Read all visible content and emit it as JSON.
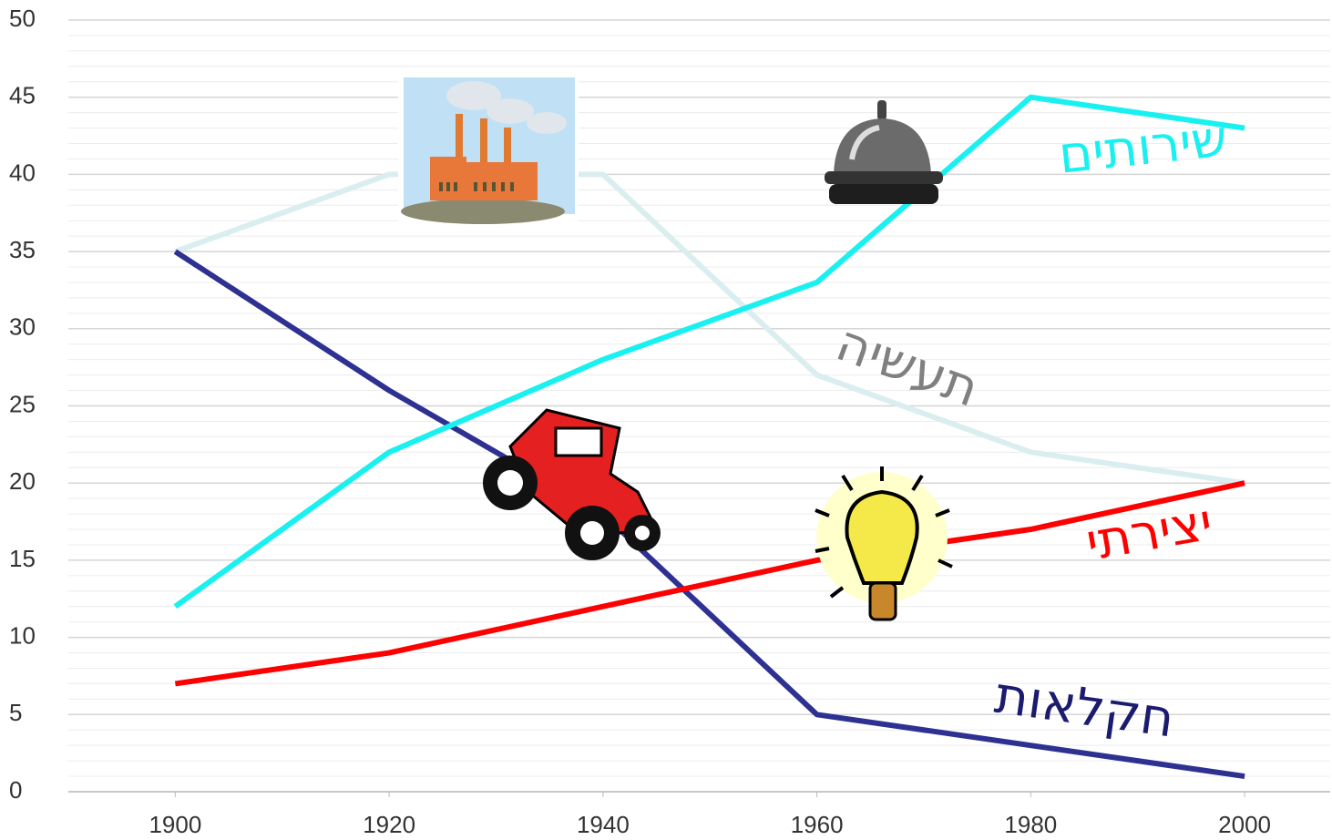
{
  "chart_data": {
    "type": "line",
    "x": [
      1900,
      1920,
      1940,
      1960,
      1980,
      2000
    ],
    "xlim": [
      1890,
      2008
    ],
    "xticks": [
      1900,
      1920,
      1940,
      1960,
      1980,
      2000
    ],
    "ylim": [
      0,
      50
    ],
    "yticks": [
      0,
      5,
      10,
      15,
      20,
      25,
      30,
      35,
      40,
      45,
      50
    ],
    "grid": true,
    "minor_grid": true,
    "series": [
      {
        "name": "חקלאות",
        "color": "#2e3192",
        "label_color": "#1b1b6f",
        "values": [
          35,
          26,
          18,
          5,
          3,
          1
        ]
      },
      {
        "name": "תעשיה",
        "color": "#daeef0",
        "label_color": "#808080",
        "values": [
          35,
          40,
          40,
          27,
          22,
          20
        ]
      },
      {
        "name": "שירותים",
        "color": "#19f0f0",
        "label_color": "#19f0f0",
        "values": [
          12,
          22,
          28,
          33,
          45,
          43
        ]
      },
      {
        "name": "יצירתי",
        "color": "#ff0000",
        "label_color": "#ff0000",
        "values": [
          7,
          9,
          12,
          15,
          17,
          20
        ]
      }
    ]
  }
}
